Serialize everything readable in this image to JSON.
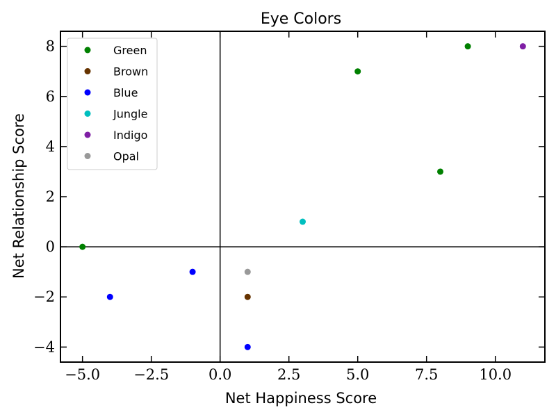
{
  "chart_data": {
    "type": "scatter",
    "title": "Eye Colors",
    "xlabel": "Net Happiness Score",
    "ylabel": "Net Relationship Score",
    "xlim": [
      -5.8,
      11.8
    ],
    "ylim": [
      -4.6,
      8.6
    ],
    "xticks": [
      -5.0,
      -2.5,
      0.0,
      2.5,
      5.0,
      7.5,
      10.0
    ],
    "xtick_labels": [
      "−5.0",
      "−2.5",
      "0.0",
      "2.5",
      "5.0",
      "7.5",
      "10.0"
    ],
    "yticks": [
      -4,
      -2,
      0,
      2,
      4,
      6,
      8
    ],
    "ytick_labels": [
      "−4",
      "−2",
      "0",
      "2",
      "4",
      "6",
      "8"
    ],
    "grid": false,
    "reference_lines": {
      "x": 0,
      "y": 0
    },
    "legend_position": "top-left",
    "series": [
      {
        "name": "Green",
        "color": "#008000",
        "points": [
          [
            -5,
            0
          ],
          [
            5,
            7
          ],
          [
            8,
            3
          ],
          [
            9,
            8
          ]
        ]
      },
      {
        "name": "Brown",
        "color": "#663300",
        "points": [
          [
            1,
            -2
          ]
        ]
      },
      {
        "name": "Blue",
        "color": "#0000ff",
        "points": [
          [
            -4,
            -2
          ],
          [
            -1,
            -1
          ],
          [
            1,
            -4
          ]
        ]
      },
      {
        "name": "Jungle",
        "color": "#00bfbf",
        "points": [
          [
            3,
            1
          ]
        ]
      },
      {
        "name": "Indigo",
        "color": "#7f1fa5",
        "points": [
          [
            11,
            8
          ]
        ]
      },
      {
        "name": "Opal",
        "color": "#999999",
        "points": [
          [
            1,
            -1
          ]
        ]
      }
    ]
  }
}
